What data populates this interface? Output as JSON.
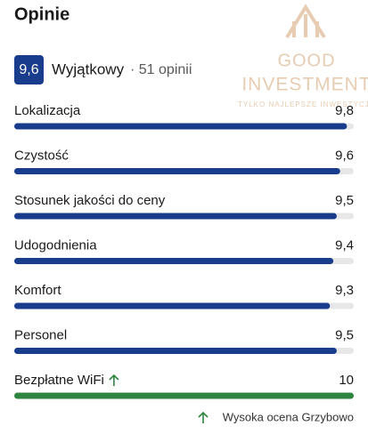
{
  "header": {
    "title": "Opinie",
    "badge": "9,6",
    "rating": "Wyjątkowy",
    "reviews": "· 51 opinii"
  },
  "watermark": {
    "brand_top": "GOOD",
    "brand_bottom": "INVESTMENT",
    "tagline": "TYLKO NAJLEPSZE INWESTYCJE"
  },
  "scores": {
    "xlim": [
      0,
      10
    ],
    "items": [
      {
        "label": "Lokalizacja",
        "value": 9.8,
        "value_label": "9,8"
      },
      {
        "label": "Czystość",
        "value": 9.6,
        "value_label": "9,6"
      },
      {
        "label": "Stosunek jakości do ceny",
        "value": 9.5,
        "value_label": "9,5"
      },
      {
        "label": "Udogodnienia",
        "value": 9.4,
        "value_label": "9,4"
      },
      {
        "label": "Komfort",
        "value": 9.3,
        "value_label": "9,3"
      },
      {
        "label": "Personel",
        "value": 9.5,
        "value_label": "9,5"
      },
      {
        "label": "Bezpłatne WiFi",
        "value": 10,
        "value_label": "10",
        "up_arrow": true,
        "color": "#2e8540"
      }
    ]
  },
  "footer": {
    "note": "Wysoka ocena Grzybowo"
  }
}
